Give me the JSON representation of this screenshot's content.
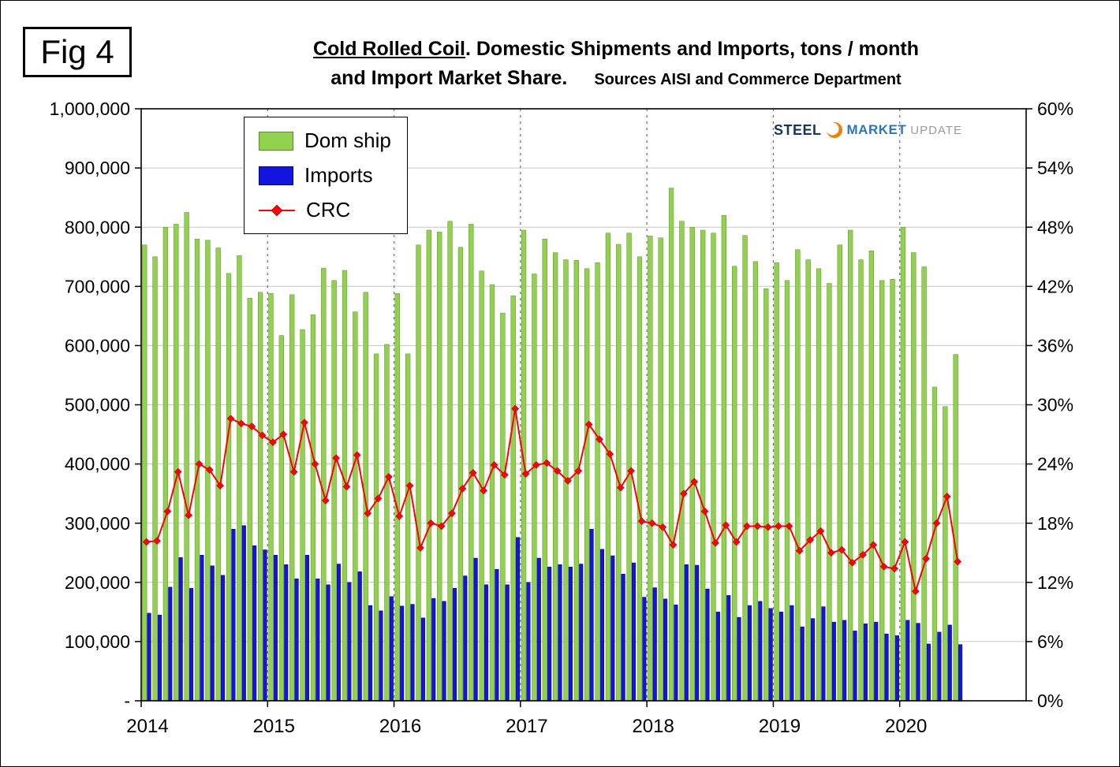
{
  "fig_label": "Fig 4",
  "title": {
    "underlined": "Cold Rolled Coil",
    "rest": ". Domestic Shipments and Imports, tons / month",
    "line2": "and Import  Market Share.",
    "sources": "Sources AISI and Commerce Department"
  },
  "legend": {
    "dom_ship": "Dom ship",
    "imports": "Imports",
    "crc": "CRC"
  },
  "logo": {
    "steel": "STEEL",
    "market": "MARKET",
    "update": "UPDATE"
  },
  "axes": {
    "left_ticks": [
      "-",
      "100,000",
      "200,000",
      "300,000",
      "400,000",
      "500,000",
      "600,000",
      "700,000",
      "800,000",
      "900,000",
      "1,000,000"
    ],
    "right_ticks": [
      "0%",
      "6%",
      "12%",
      "18%",
      "24%",
      "30%",
      "36%",
      "42%",
      "48%",
      "54%",
      "60%"
    ],
    "years": [
      "2014",
      "2015",
      "2016",
      "2017",
      "2018",
      "2019",
      "2020"
    ]
  },
  "colors": {
    "dom_ship": "#92D050",
    "imports": "#1414E0",
    "crc": "#FF0000",
    "gridline": "#c6c6c6",
    "year_line": "#6e6e6e"
  },
  "chart_data": {
    "type": "bar",
    "note": "monthly dual-axis combo: two bar series on left axis (tons/month), one line series (CRC import market share) on right axis (%)",
    "x_domain_months": 84,
    "left_axis": {
      "min": 0,
      "max": 1000000,
      "step": 100000
    },
    "right_axis": {
      "min": 0,
      "max": 60,
      "step": 6,
      "unit": "%"
    },
    "categories": [
      "2014-01",
      "2014-02",
      "2014-03",
      "2014-04",
      "2014-05",
      "2014-06",
      "2014-07",
      "2014-08",
      "2014-09",
      "2014-10",
      "2014-11",
      "2014-12",
      "2015-01",
      "2015-02",
      "2015-03",
      "2015-04",
      "2015-05",
      "2015-06",
      "2015-07",
      "2015-08",
      "2015-09",
      "2015-10",
      "2015-11",
      "2015-12",
      "2016-01",
      "2016-02",
      "2016-03",
      "2016-04",
      "2016-05",
      "2016-06",
      "2016-07",
      "2016-08",
      "2016-09",
      "2016-10",
      "2016-11",
      "2016-12",
      "2017-01",
      "2017-02",
      "2017-03",
      "2017-04",
      "2017-05",
      "2017-06",
      "2017-07",
      "2017-08",
      "2017-09",
      "2017-10",
      "2017-11",
      "2017-12",
      "2018-01",
      "2018-02",
      "2018-03",
      "2018-04",
      "2018-05",
      "2018-06",
      "2018-07",
      "2018-08",
      "2018-09",
      "2018-10",
      "2018-11",
      "2018-12",
      "2019-01",
      "2019-02",
      "2019-03",
      "2019-04",
      "2019-05",
      "2019-06",
      "2019-07",
      "2019-08",
      "2019-09",
      "2019-10",
      "2019-11",
      "2019-12",
      "2020-01",
      "2020-02",
      "2020-03",
      "2020-04",
      "2020-05",
      "2020-06"
    ],
    "series": [
      {
        "name": "Dom ship",
        "type": "bar",
        "axis": "left",
        "color": "#92D050",
        "values": [
          770000,
          750000,
          800000,
          805000,
          825000,
          780000,
          778000,
          765000,
          722000,
          752000,
          680000,
          690000,
          688000,
          617000,
          686000,
          627000,
          652000,
          731000,
          710000,
          727000,
          657000,
          690000,
          586000,
          602000,
          688000,
          586000,
          770000,
          795000,
          792000,
          810000,
          766000,
          805000,
          726000,
          703000,
          655000,
          684000,
          795000,
          721000,
          780000,
          757000,
          745000,
          744000,
          730000,
          740000,
          790000,
          771000,
          790000,
          750000,
          785000,
          782000,
          866000,
          810000,
          800000,
          795000,
          790000,
          820000,
          734000,
          786000,
          742000,
          696000,
          740000,
          710000,
          762000,
          745000,
          730000,
          705000,
          770000,
          795000,
          745000,
          760000,
          710000,
          712000,
          800000,
          757000,
          733000,
          530000,
          497000,
          585000
        ]
      },
      {
        "name": "Imports",
        "type": "bar",
        "axis": "left",
        "color": "#1414E0",
        "values": [
          148000,
          145000,
          192000,
          242000,
          190000,
          246000,
          228000,
          212000,
          290000,
          296000,
          262000,
          255000,
          246000,
          230000,
          206000,
          246000,
          206000,
          196000,
          231000,
          200000,
          218000,
          161000,
          152000,
          176000,
          160000,
          163000,
          140000,
          173000,
          168000,
          190000,
          211000,
          241000,
          196000,
          222000,
          196000,
          276000,
          200000,
          241000,
          226000,
          230000,
          226000,
          231000,
          290000,
          256000,
          245000,
          214000,
          233000,
          175000,
          191000,
          172000,
          162000,
          230000,
          229000,
          189000,
          150000,
          178000,
          141000,
          161000,
          168000,
          156000,
          150000,
          161000,
          125000,
          139000,
          159000,
          133000,
          136000,
          118000,
          130000,
          133000,
          113000,
          110000,
          136000,
          131000,
          96000,
          116000,
          128000,
          95000
        ]
      },
      {
        "name": "CRC",
        "type": "line",
        "axis": "right",
        "color": "#FF0000",
        "values": [
          16.1,
          16.2,
          19.2,
          23.2,
          18.8,
          24.0,
          23.4,
          21.8,
          28.6,
          28.1,
          27.8,
          26.9,
          26.2,
          27.0,
          23.2,
          28.2,
          24.0,
          20.3,
          24.6,
          21.7,
          24.9,
          19.0,
          20.5,
          22.7,
          18.7,
          21.8,
          15.5,
          18.0,
          17.7,
          19.0,
          21.5,
          23.1,
          21.3,
          23.9,
          22.9,
          29.6,
          23.0,
          23.9,
          24.1,
          23.3,
          22.3,
          23.3,
          28.0,
          26.5,
          25.0,
          21.6,
          23.3,
          18.2,
          18.0,
          17.6,
          15.8,
          21.0,
          22.2,
          19.2,
          16.0,
          17.8,
          16.1,
          17.7,
          17.7,
          17.6,
          17.7,
          17.7,
          15.2,
          16.3,
          17.2,
          15.0,
          15.3,
          14.0,
          14.8,
          15.8,
          13.6,
          13.4,
          16.1,
          11.1,
          14.4,
          18.0,
          20.7,
          14.1
        ]
      }
    ]
  }
}
